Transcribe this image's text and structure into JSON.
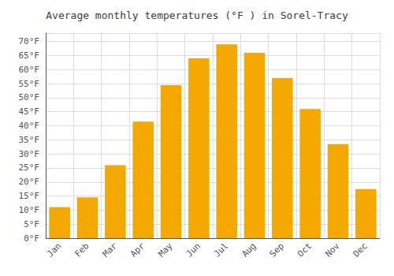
{
  "chart_data": {
    "type": "bar",
    "title": "Average monthly temperatures (°F ) in Sorel-Tracy",
    "categories": [
      "Jan",
      "Feb",
      "Mar",
      "Apr",
      "May",
      "Jun",
      "Jul",
      "Aug",
      "Sep",
      "Oct",
      "Nov",
      "Dec"
    ],
    "values": [
      11,
      14.5,
      26,
      41.5,
      54.5,
      64,
      69,
      66,
      57,
      46,
      33.5,
      17.5
    ],
    "color": "#F5A800",
    "ylim": [
      0,
      73
    ],
    "yticks": [
      {
        "value": 0,
        "label": "0°F"
      },
      {
        "value": 5,
        "label": "5°F"
      },
      {
        "value": 10,
        "label": "10°F"
      },
      {
        "value": 15,
        "label": "15°F"
      },
      {
        "value": 20,
        "label": "20°F"
      },
      {
        "value": 25,
        "label": "25°F"
      },
      {
        "value": 30,
        "label": "30°F"
      },
      {
        "value": 35,
        "label": "35°F"
      },
      {
        "value": 40,
        "label": "40°F"
      },
      {
        "value": 45,
        "label": "45°F"
      },
      {
        "value": 50,
        "label": "50°F"
      },
      {
        "value": 55,
        "label": "55°F"
      },
      {
        "value": 60,
        "label": "60°F"
      },
      {
        "value": 65,
        "label": "65°F"
      },
      {
        "value": 70,
        "label": "70°F"
      }
    ],
    "grid": true
  }
}
